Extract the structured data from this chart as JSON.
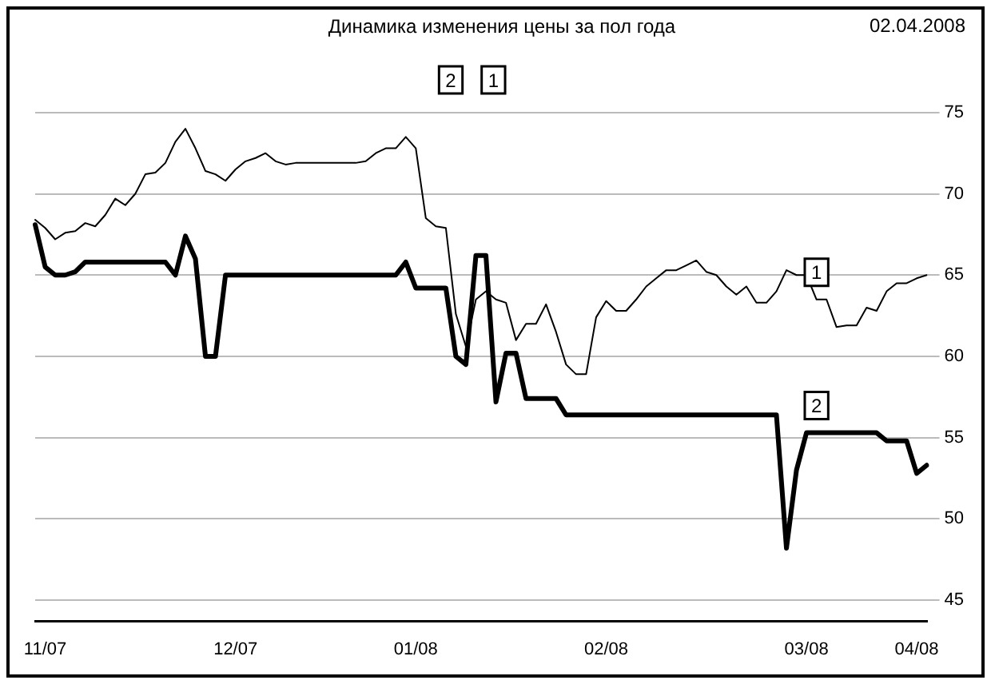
{
  "chart_data": {
    "type": "line",
    "title": "Динамика изменения цены за пол года",
    "annotations": [
      "02.04.2008"
    ],
    "categories": [
      null,
      "11/07",
      null,
      null,
      null,
      null,
      null,
      null,
      null,
      null,
      null,
      null,
      null,
      null,
      null,
      null,
      null,
      null,
      null,
      null,
      "12/07",
      null,
      null,
      null,
      null,
      null,
      null,
      null,
      null,
      null,
      null,
      null,
      null,
      null,
      null,
      null,
      null,
      null,
      "01/08",
      null,
      null,
      null,
      null,
      null,
      null,
      null,
      null,
      null,
      null,
      null,
      null,
      null,
      null,
      null,
      null,
      null,
      null,
      "02/08",
      null,
      null,
      null,
      null,
      null,
      null,
      null,
      null,
      null,
      null,
      null,
      null,
      null,
      null,
      null,
      null,
      null,
      null,
      null,
      "03/08",
      null,
      null,
      null,
      null,
      null,
      null,
      null,
      null,
      null,
      null,
      "04/08",
      null
    ],
    "series": [
      {
        "name": "2",
        "color": "#000000",
        "values": [
          68.1,
          65.5,
          65.0,
          65.0,
          65.2,
          65.8,
          65.8,
          65.8,
          65.8,
          65.8,
          65.8,
          65.8,
          65.8,
          65.8,
          65.0,
          67.4,
          66.0,
          60.0,
          60.0,
          65.0,
          65.0,
          65.0,
          65.0,
          65.0,
          65.0,
          65.0,
          65.0,
          65.0,
          65.0,
          65.0,
          65.0,
          65.0,
          65.0,
          65.0,
          65.0,
          65.0,
          65.0,
          65.8,
          64.2,
          64.2,
          64.2,
          64.2,
          60.0,
          59.5,
          66.2,
          66.2,
          57.2,
          60.2,
          60.2,
          57.4,
          57.4,
          57.4,
          57.4,
          56.4,
          56.4,
          56.4,
          56.4,
          56.4,
          56.4,
          56.4,
          56.4,
          56.4,
          56.4,
          56.4,
          56.4,
          56.4,
          56.4,
          56.4,
          56.4,
          56.4,
          56.4,
          56.4,
          56.4,
          56.4,
          56.4,
          48.2,
          53.0,
          55.3,
          55.3,
          55.3,
          55.3,
          55.3,
          55.3,
          55.3,
          55.3,
          54.8,
          54.8,
          54.8,
          52.8,
          53.3
        ]
      },
      {
        "name": "1",
        "color": "#000000",
        "values": [
          68.4,
          67.9,
          67.2,
          67.6,
          67.7,
          68.2,
          68.0,
          68.7,
          69.7,
          69.3,
          70.0,
          71.2,
          71.3,
          71.9,
          73.2,
          74.0,
          72.8,
          71.4,
          71.2,
          70.8,
          71.5,
          72.0,
          72.2,
          72.5,
          72.0,
          71.8,
          71.9,
          71.9,
          71.9,
          71.9,
          71.9,
          71.9,
          71.9,
          72.0,
          72.5,
          72.8,
          72.8,
          73.5,
          72.8,
          68.5,
          68.0,
          67.9,
          62.6,
          60.6,
          63.5,
          64.0,
          63.5,
          63.3,
          61.0,
          62.0,
          62.0,
          63.2,
          61.5,
          59.5,
          58.9,
          58.9,
          62.4,
          63.4,
          62.8,
          62.8,
          63.5,
          64.3,
          64.8,
          65.3,
          65.3,
          65.6,
          65.9,
          65.2,
          65.0,
          64.3,
          63.8,
          64.3,
          63.3,
          63.3,
          64.0,
          65.3,
          65.0,
          65.0,
          63.5,
          63.5,
          61.8,
          61.9,
          61.9,
          63.0,
          62.8,
          64.0,
          64.5,
          64.5,
          64.8,
          65.0
        ]
      }
    ],
    "ylim": [
      43.7,
      75
    ],
    "yticks": [
      45,
      50,
      55,
      60,
      65,
      70,
      75
    ],
    "grid": "y",
    "legend": "top",
    "marker": "none"
  }
}
